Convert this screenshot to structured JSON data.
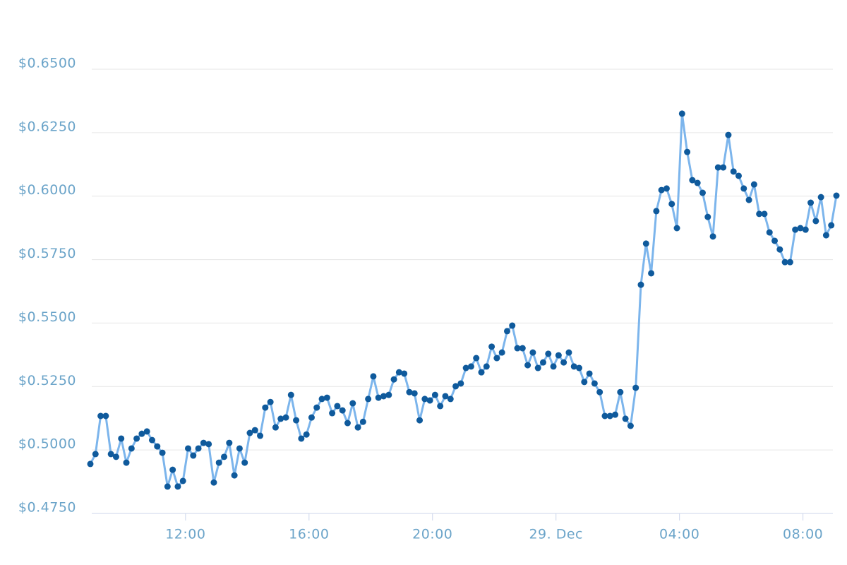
{
  "chart_data": {
    "type": "line",
    "x": [
      "08:55",
      "09:05",
      "09:15",
      "09:25",
      "09:35",
      "09:45",
      "09:55",
      "10:05",
      "10:15",
      "10:25",
      "10:35",
      "10:45",
      "10:55",
      "11:05",
      "11:15",
      "11:25",
      "11:35",
      "11:45",
      "11:55",
      "12:05",
      "12:15",
      "12:25",
      "12:35",
      "12:45",
      "12:55",
      "13:05",
      "13:15",
      "13:25",
      "13:35",
      "13:45",
      "13:55",
      "14:05",
      "14:15",
      "14:25",
      "14:35",
      "14:45",
      "14:55",
      "15:05",
      "15:15",
      "15:25",
      "15:35",
      "15:45",
      "15:55",
      "16:05",
      "16:15",
      "16:25",
      "16:35",
      "16:45",
      "16:55",
      "17:05",
      "17:15",
      "17:25",
      "17:35",
      "17:45",
      "17:55",
      "18:05",
      "18:15",
      "18:25",
      "18:35",
      "18:45",
      "18:55",
      "19:05",
      "19:15",
      "19:25",
      "19:35",
      "19:45",
      "19:55",
      "20:05",
      "20:15",
      "20:25",
      "20:35",
      "20:45",
      "20:55",
      "21:05",
      "21:15",
      "21:25",
      "21:35",
      "21:45",
      "21:55",
      "22:05",
      "22:15",
      "22:25",
      "22:35",
      "22:45",
      "22:55",
      "23:05",
      "23:15",
      "23:25",
      "23:35",
      "23:45",
      "23:55",
      "00:05",
      "00:15",
      "00:25",
      "00:35",
      "00:45",
      "00:55",
      "01:05",
      "01:15",
      "01:25",
      "01:35",
      "01:45",
      "01:55",
      "02:05",
      "02:15",
      "02:25",
      "02:35",
      "02:45",
      "02:55",
      "03:05",
      "03:15",
      "03:25",
      "03:35",
      "03:45",
      "03:55",
      "04:05",
      "04:15",
      "04:25",
      "04:35",
      "04:45",
      "04:55",
      "05:05",
      "05:15",
      "05:25",
      "05:35",
      "05:45",
      "05:55",
      "06:05",
      "06:15",
      "06:25",
      "06:35",
      "06:45",
      "06:55",
      "07:05",
      "07:15",
      "07:25",
      "07:35",
      "07:45",
      "07:55",
      "08:05",
      "08:15",
      "08:25",
      "08:35",
      "08:45",
      "08:55",
      "09:05"
    ],
    "values": [
      0.4945,
      0.4984,
      0.5134,
      0.5134,
      0.4984,
      0.4973,
      0.5045,
      0.495,
      0.5006,
      0.5045,
      0.5064,
      0.5073,
      0.5039,
      0.5014,
      0.4989,
      0.4856,
      0.4922,
      0.4856,
      0.4878,
      0.5006,
      0.4978,
      0.5006,
      0.5028,
      0.5023,
      0.4872,
      0.495,
      0.4973,
      0.5028,
      0.49,
      0.5006,
      0.495,
      0.5067,
      0.5078,
      0.5056,
      0.5167,
      0.5189,
      0.5089,
      0.5123,
      0.5128,
      0.5217,
      0.5117,
      0.5045,
      0.5061,
      0.5128,
      0.5167,
      0.5201,
      0.5206,
      0.5145,
      0.5173,
      0.5156,
      0.5106,
      0.5184,
      0.5089,
      0.5111,
      0.5201,
      0.529,
      0.5206,
      0.5212,
      0.5217,
      0.5278,
      0.5306,
      0.5301,
      0.5228,
      0.5223,
      0.5117,
      0.5201,
      0.5195,
      0.5217,
      0.5173,
      0.5212,
      0.5201,
      0.5251,
      0.5262,
      0.5323,
      0.5329,
      0.5362,
      0.5306,
      0.5329,
      0.5407,
      0.5362,
      0.5384,
      0.5468,
      0.549,
      0.5401,
      0.5401,
      0.5334,
      0.5384,
      0.5323,
      0.5345,
      0.5379,
      0.5329,
      0.5373,
      0.5345,
      0.5384,
      0.5329,
      0.5323,
      0.5268,
      0.5301,
      0.5262,
      0.5228,
      0.5134,
      0.5134,
      0.5139,
      0.5228,
      0.5123,
      0.5095,
      0.5245,
      0.5651,
      0.5813,
      0.5696,
      0.5941,
      0.6024,
      0.603,
      0.5969,
      0.5874,
      0.6325,
      0.6174,
      0.6063,
      0.6052,
      0.6013,
      0.5918,
      0.5841,
      0.6113,
      0.6113,
      0.6241,
      0.6097,
      0.608,
      0.603,
      0.5985,
      0.6046,
      0.593,
      0.593,
      0.5857,
      0.5824,
      0.579,
      0.574,
      0.574,
      0.5868,
      0.5874,
      0.5868,
      0.5974,
      0.5902,
      0.5996,
      0.5846,
      0.5885,
      0.6002
    ],
    "line_color": "#7cb5ec",
    "marker_color": "#0f5a9c",
    "ylim": [
      0.475,
      0.65
    ],
    "yticks": [
      {
        "value": 0.475,
        "label": "$0.4750"
      },
      {
        "value": 0.5,
        "label": "$0.5000"
      },
      {
        "value": 0.525,
        "label": "$0.5250"
      },
      {
        "value": 0.55,
        "label": "$0.5500"
      },
      {
        "value": 0.575,
        "label": "$0.5750"
      },
      {
        "value": 0.6,
        "label": "$0.6000"
      },
      {
        "value": 0.625,
        "label": "$0.6250"
      },
      {
        "value": 0.65,
        "label": "$0.6500"
      }
    ],
    "xticks": [
      "12:00",
      "16:00",
      "20:00",
      {
        "value": "00:00",
        "label": "29. Dec"
      },
      "04:00",
      "08:00"
    ],
    "grid": true
  }
}
